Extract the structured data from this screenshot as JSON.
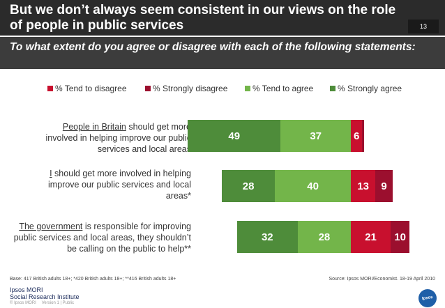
{
  "slide": {
    "title": "But we don’t always seem consistent in our views on the role of people in public services",
    "page_number": "13",
    "subtitle": "To what extent do you agree or disagree with each of the following statements:"
  },
  "colors": {
    "tend_disagree": "#c8102e",
    "strongly_disagree": "#9b0f2e",
    "tend_agree": "#73b54a",
    "strongly_agree": "#4e8c3a"
  },
  "chart_data": {
    "type": "bar",
    "orientation": "horizontal",
    "stacked": true,
    "diverging": true,
    "legend": [
      "% Tend to disagree",
      "% Strongly disagree",
      "% Tend to agree",
      "% Strongly agree"
    ],
    "categories": [
      {
        "underlined": "People in Britain",
        "text": " should get more involved in helping improve our public services and local areas"
      },
      {
        "underlined": "I",
        "text": " should get more involved in helping improve our public services and local areas*"
      },
      {
        "underlined": "The government",
        "text": " is responsible for improving public services and local areas, they shouldn’t be calling on the public to help**"
      }
    ],
    "series": [
      {
        "name": "% Strongly agree",
        "values": [
          49,
          28,
          32
        ]
      },
      {
        "name": "% Tend to agree",
        "values": [
          37,
          40,
          28
        ]
      },
      {
        "name": "% Tend to disagree",
        "values": [
          6,
          13,
          21
        ]
      },
      {
        "name": "% Strongly disagree",
        "values": [
          1,
          9,
          10
        ]
      }
    ],
    "value_labels": {
      "% Strongly agree": [
        "49",
        "28",
        "32"
      ],
      "% Tend to agree": [
        "37",
        "40",
        "28"
      ],
      "% Tend to disagree": [
        "6",
        "13",
        "21"
      ],
      "% Strongly disagree": [
        "",
        "9",
        "10"
      ]
    }
  },
  "footer": {
    "base": "Base: 417 British adults 18+; *420 British adults 18+; **416 British adults 18+",
    "source": "Source: Ipsos MORI/Economist. 18-19 April 2010",
    "logo_line1": "Ipsos MORI",
    "logo_line2": "Social Research Institute",
    "copyright": "© Ipsos MORI",
    "version": "Version 1 | Public",
    "badge": "Ipsos"
  }
}
